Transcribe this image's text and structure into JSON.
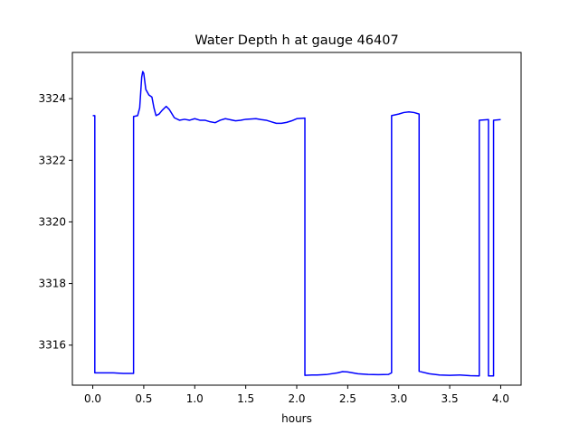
{
  "chart_data": {
    "type": "line",
    "title": "Water Depth h at gauge 46407",
    "xlabel": "hours",
    "ylabel": "",
    "xlim": [
      -0.2,
      4.2
    ],
    "ylim": [
      3314.7,
      3325.5
    ],
    "xticks": [
      0.0,
      0.5,
      1.0,
      1.5,
      2.0,
      2.5,
      3.0,
      3.5,
      4.0
    ],
    "xtick_labels": [
      "0.0",
      "0.5",
      "1.0",
      "1.5",
      "2.0",
      "2.5",
      "3.0",
      "3.5",
      "4.0"
    ],
    "yticks": [
      3316,
      3318,
      3320,
      3322,
      3324
    ],
    "ytick_labels": [
      "3316",
      "3318",
      "3320",
      "3322",
      "3324"
    ],
    "grid": false,
    "series": [
      {
        "color": "#0000ff",
        "points": [
          [
            0.0,
            3323.45
          ],
          [
            0.02,
            3323.45
          ],
          [
            0.02,
            3315.1
          ],
          [
            0.1,
            3315.1
          ],
          [
            0.2,
            3315.1
          ],
          [
            0.3,
            3315.08
          ],
          [
            0.4,
            3315.08
          ],
          [
            0.4,
            3323.42
          ],
          [
            0.44,
            3323.45
          ],
          [
            0.46,
            3323.7
          ],
          [
            0.48,
            3324.7
          ],
          [
            0.49,
            3324.88
          ],
          [
            0.5,
            3324.82
          ],
          [
            0.52,
            3324.3
          ],
          [
            0.55,
            3324.12
          ],
          [
            0.58,
            3324.05
          ],
          [
            0.6,
            3323.7
          ],
          [
            0.62,
            3323.45
          ],
          [
            0.65,
            3323.5
          ],
          [
            0.68,
            3323.62
          ],
          [
            0.72,
            3323.75
          ],
          [
            0.75,
            3323.65
          ],
          [
            0.8,
            3323.38
          ],
          [
            0.85,
            3323.3
          ],
          [
            0.9,
            3323.33
          ],
          [
            0.95,
            3323.3
          ],
          [
            1.0,
            3323.35
          ],
          [
            1.05,
            3323.3
          ],
          [
            1.1,
            3323.3
          ],
          [
            1.15,
            3323.25
          ],
          [
            1.2,
            3323.22
          ],
          [
            1.25,
            3323.3
          ],
          [
            1.3,
            3323.35
          ],
          [
            1.4,
            3323.28
          ],
          [
            1.45,
            3323.3
          ],
          [
            1.5,
            3323.33
          ],
          [
            1.6,
            3323.35
          ],
          [
            1.65,
            3323.32
          ],
          [
            1.7,
            3323.3
          ],
          [
            1.75,
            3323.25
          ],
          [
            1.8,
            3323.2
          ],
          [
            1.85,
            3323.2
          ],
          [
            1.9,
            3323.23
          ],
          [
            1.95,
            3323.28
          ],
          [
            2.0,
            3323.35
          ],
          [
            2.08,
            3323.37
          ],
          [
            2.08,
            3315.02
          ],
          [
            2.15,
            3315.03
          ],
          [
            2.2,
            3315.03
          ],
          [
            2.3,
            3315.05
          ],
          [
            2.4,
            3315.1
          ],
          [
            2.45,
            3315.14
          ],
          [
            2.5,
            3315.13
          ],
          [
            2.6,
            3315.07
          ],
          [
            2.7,
            3315.05
          ],
          [
            2.8,
            3315.04
          ],
          [
            2.9,
            3315.05
          ],
          [
            2.93,
            3315.1
          ],
          [
            2.93,
            3323.45
          ],
          [
            3.0,
            3323.5
          ],
          [
            3.05,
            3323.55
          ],
          [
            3.1,
            3323.57
          ],
          [
            3.15,
            3323.55
          ],
          [
            3.2,
            3323.5
          ],
          [
            3.2,
            3315.15
          ],
          [
            3.3,
            3315.07
          ],
          [
            3.4,
            3315.03
          ],
          [
            3.5,
            3315.02
          ],
          [
            3.6,
            3315.03
          ],
          [
            3.7,
            3315.01
          ],
          [
            3.79,
            3315.0
          ],
          [
            3.79,
            3323.3
          ],
          [
            3.88,
            3323.32
          ],
          [
            3.88,
            3315.0
          ],
          [
            3.93,
            3315.0
          ],
          [
            3.93,
            3323.3
          ],
          [
            4.0,
            3323.32
          ]
        ]
      }
    ]
  }
}
